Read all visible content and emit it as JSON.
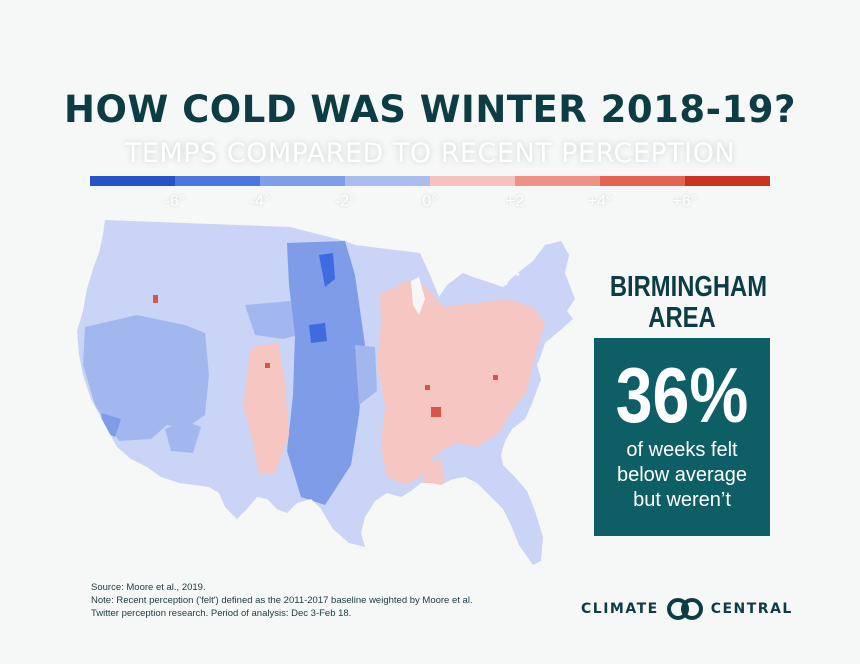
{
  "title": "HOW COLD WAS WINTER 2018-19?",
  "subtitle": "TEMPS COMPARED TO RECENT PERCEPTION",
  "scale": {
    "colors": [
      "#2553c8",
      "#4b78e0",
      "#7d9ee8",
      "#a9bdf0",
      "#f6c2bd",
      "#ef9285",
      "#e56352",
      "#c8341d"
    ],
    "ticks": [
      "-6°",
      "-4°",
      "-2°",
      "0°",
      "+2",
      "+4°",
      "+6°"
    ]
  },
  "map": {
    "colors": {
      "pale_blue": "#c9d4f6",
      "light_blue": "#a3b7ef",
      "mid_blue": "#7f9ce8",
      "dark_blue": "#3f6be0",
      "pale_red": "#f6c6c3",
      "dark_red": "#d9554c"
    }
  },
  "callout": {
    "place": "BIRMINGHAM\nAREA",
    "percent": "36%",
    "line1": "of weeks felt",
    "line2": "below average",
    "line3": "but weren’t"
  },
  "source": {
    "line1": "Source: Moore et al., 2019.",
    "line2": "Note: Recent perception ('felt') defined as the 2011-2017  baseline weighted by Moore et al.",
    "line3": "Twitter perception research. Period of analysis: Dec 3-Feb 18."
  },
  "logo": {
    "left": "CLIMATE",
    "right": "CENTRAL"
  }
}
